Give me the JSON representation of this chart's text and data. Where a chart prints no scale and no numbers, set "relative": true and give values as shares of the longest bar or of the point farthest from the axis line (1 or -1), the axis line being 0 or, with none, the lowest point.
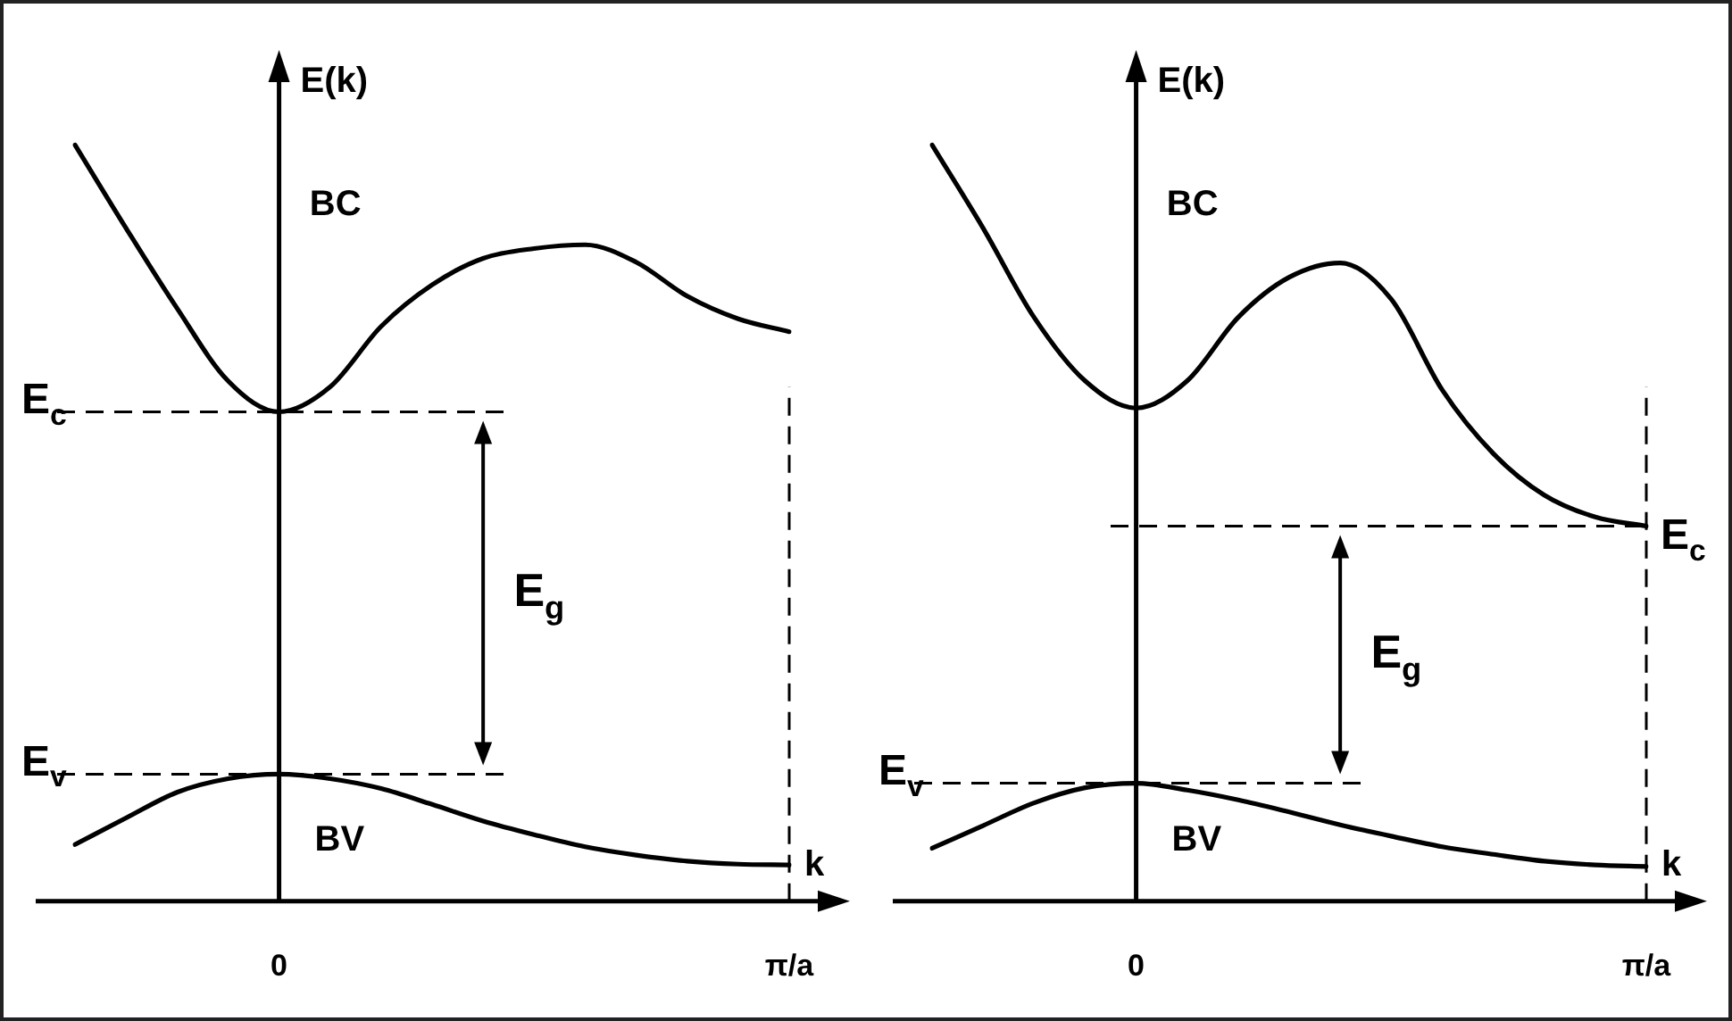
{
  "chart_data": [
    {
      "type": "line",
      "relative": true,
      "xlabel": "k",
      "ylabel": "E(k)",
      "tick_labels": "x",
      "categories": [
        null,
        null,
        null,
        null,
        "0",
        null,
        null,
        null,
        null,
        null,
        null,
        null,
        null,
        null,
        "π/a"
      ],
      "series": [
        {
          "color": "#000000",
          "values": [
            1.0,
            0.89,
            0.784,
            0.688,
            0.647,
            0.68,
            0.76,
            0.815,
            0.85,
            0.863,
            0.868,
            0.845,
            0.8,
            0.77,
            0.753
          ]
        },
        {
          "color": "#000000",
          "values": [
            0.075,
            0.11,
            0.144,
            0.162,
            0.168,
            0.162,
            0.149,
            0.128,
            0.106,
            0.088,
            0.072,
            0.061,
            0.053,
            0.049,
            0.048
          ]
        }
      ],
      "ref_lines": [
        {
          "axis": "y",
          "value": 0.647,
          "label": "E$_{c}$"
        },
        {
          "axis": "y",
          "value": 0.168,
          "label": "E$_{v}$"
        },
        {
          "axis": "x",
          "value": "π/a"
        }
      ],
      "annotations": [
        "E$_{g}$",
        "BC",
        "BV"
      ]
    },
    {
      "type": "line",
      "relative": true,
      "xlabel": "k",
      "ylabel": "E(k)",
      "tick_labels": "x",
      "categories": [
        null,
        null,
        null,
        null,
        "0",
        null,
        null,
        null,
        null,
        null,
        null,
        null,
        null,
        null,
        "π/a"
      ],
      "series": [
        {
          "color": "#000000",
          "values": [
            1.0,
            0.89,
            0.772,
            0.688,
            0.652,
            0.688,
            0.772,
            0.825,
            0.844,
            0.796,
            0.676,
            0.592,
            0.537,
            0.508,
            0.496
          ]
        },
        {
          "color": "#000000",
          "values": [
            0.07,
            0.1,
            0.13,
            0.15,
            0.156,
            0.147,
            0.134,
            0.118,
            0.101,
            0.086,
            0.072,
            0.062,
            0.053,
            0.048,
            0.046
          ]
        }
      ],
      "ref_lines": [
        {
          "axis": "y",
          "value": 0.496,
          "label": "E$_{c}$"
        },
        {
          "axis": "y",
          "value": 0.156,
          "label": "E$_{v}$"
        },
        {
          "axis": "x",
          "value": "π/a"
        }
      ],
      "annotations": [
        "E$_{g}$",
        "BC",
        "BV"
      ]
    }
  ]
}
